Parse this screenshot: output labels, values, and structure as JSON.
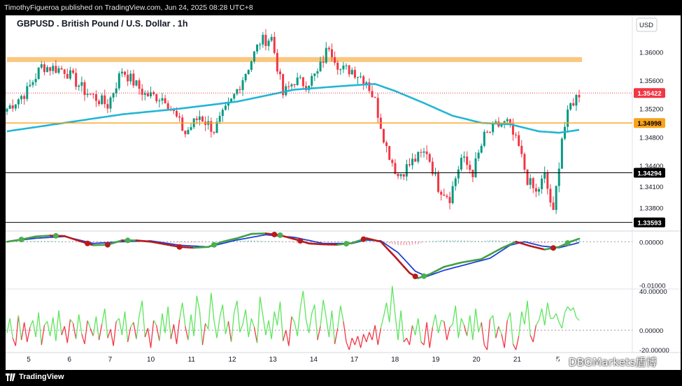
{
  "header": {
    "publisher": "TimothyFigueroa published on TradingView.com, Jun 24, 2025 08:28 UTC+8"
  },
  "footer": {
    "logo_text": "TradingView",
    "watermark": "DBGMarkets盾博"
  },
  "colors": {
    "up": "#089981",
    "down": "#f23645",
    "ma": "#22b6d4",
    "zone": "#f9bd6b",
    "osc_up": "#43a047",
    "osc_down": "#b71c1c",
    "osc_signal": "#1e40d8",
    "rsi_up": "#5ce65c",
    "rsi_down": "#f23645"
  },
  "chart_data": [
    {
      "type": "candlestick",
      "title": "GBPUSD . British Pound / U.S. Dollar . 1h",
      "currency": "USD",
      "y_ticks": [
        1.36,
        1.356,
        1.352,
        1.348,
        1.344,
        1.341,
        1.338
      ],
      "ylim": [
        1.3349,
        1.3652
      ],
      "x_ticks": [
        "5",
        "6",
        "7",
        "10",
        "11",
        "12",
        "13",
        "14",
        "17",
        "18",
        "19",
        "20",
        "21",
        "5"
      ],
      "price_tags": [
        {
          "label": "1.35422",
          "value": 1.35422,
          "style": "last"
        },
        {
          "label": "1.34998",
          "value": 1.34998,
          "style": "level-orange"
        },
        {
          "label": "1.34294",
          "value": 1.34294,
          "style": "level-black"
        },
        {
          "label": "1.33593",
          "value": 1.33593,
          "style": "level-black"
        }
      ],
      "resistance_zone": [
        1.3586,
        1.3593
      ],
      "anchor_points": [
        [
          0,
          1.352
        ],
        [
          7,
          1.3545
        ],
        [
          12,
          1.358
        ],
        [
          20,
          1.3575
        ],
        [
          27,
          1.3545
        ],
        [
          35,
          1.3525
        ],
        [
          40,
          1.3575
        ],
        [
          48,
          1.354
        ],
        [
          55,
          1.3535
        ],
        [
          62,
          1.3485
        ],
        [
          67,
          1.351
        ],
        [
          72,
          1.349
        ],
        [
          78,
          1.353
        ],
        [
          84,
          1.358
        ],
        [
          88,
          1.3615
        ],
        [
          92,
          1.362
        ],
        [
          96,
          1.354
        ],
        [
          100,
          1.356
        ],
        [
          104,
          1.3555
        ],
        [
          108,
          1.357
        ],
        [
          112,
          1.361
        ],
        [
          116,
          1.3575
        ],
        [
          120,
          1.3575
        ],
        [
          125,
          1.356
        ],
        [
          128,
          1.353
        ],
        [
          132,
          1.3465
        ],
        [
          136,
          1.3425
        ],
        [
          141,
          1.3445
        ],
        [
          146,
          1.346
        ],
        [
          150,
          1.341
        ],
        [
          154,
          1.3395
        ],
        [
          158,
          1.345
        ],
        [
          162,
          1.343
        ],
        [
          166,
          1.348
        ],
        [
          170,
          1.3495
        ],
        [
          174,
          1.35
        ],
        [
          178,
          1.3465
        ],
        [
          181,
          1.342
        ],
        [
          184,
          1.34
        ],
        [
          187,
          1.3425
        ],
        [
          190,
          1.337
        ],
        [
          193,
          1.348
        ],
        [
          196,
          1.3525
        ],
        [
          199,
          1.3542
        ]
      ],
      "ma_points": [
        [
          0,
          1.3488
        ],
        [
          20,
          1.35
        ],
        [
          40,
          1.3512
        ],
        [
          60,
          1.352
        ],
        [
          80,
          1.353
        ],
        [
          100,
          1.3547
        ],
        [
          120,
          1.3553
        ],
        [
          128,
          1.3555
        ],
        [
          135,
          1.3545
        ],
        [
          145,
          1.3528
        ],
        [
          155,
          1.351
        ],
        [
          165,
          1.35
        ],
        [
          175,
          1.3498
        ],
        [
          185,
          1.3488
        ],
        [
          192,
          1.3486
        ],
        [
          199,
          1.349
        ]
      ]
    },
    {
      "type": "line",
      "title": "",
      "y_ticks": [
        0.0,
        -0.01
      ],
      "y_tick_labels": [
        "0.00000",
        "-0.01000"
      ],
      "ylim": [
        -0.0109,
        0.0023
      ],
      "main_points": [
        [
          0,
          0.0
        ],
        [
          5,
          0.0005
        ],
        [
          10,
          0.0012
        ],
        [
          15,
          0.0014
        ],
        [
          20,
          0.0013
        ],
        [
          25,
          0.0002
        ],
        [
          30,
          -0.0008
        ],
        [
          35,
          -0.0007
        ],
        [
          40,
          0.0003
        ],
        [
          45,
          0.0003
        ],
        [
          50,
          0.0
        ],
        [
          55,
          -0.0006
        ],
        [
          60,
          -0.0012
        ],
        [
          65,
          -0.0014
        ],
        [
          70,
          -0.0012
        ],
        [
          75,
          0.0
        ],
        [
          80,
          0.0008
        ],
        [
          85,
          0.0018
        ],
        [
          90,
          0.0019
        ],
        [
          95,
          0.0015
        ],
        [
          100,
          0.0006
        ],
        [
          105,
          -0.0004
        ],
        [
          110,
          -0.0006
        ],
        [
          115,
          -0.0007
        ],
        [
          120,
          -0.0003
        ],
        [
          125,
          0.0008
        ],
        [
          130,
          0.0
        ],
        [
          135,
          -0.0035
        ],
        [
          140,
          -0.0072
        ],
        [
          143,
          -0.0084
        ],
        [
          147,
          -0.0075
        ],
        [
          152,
          -0.0058
        ],
        [
          158,
          -0.0048
        ],
        [
          165,
          -0.004
        ],
        [
          172,
          -0.0015
        ],
        [
          177,
          0.0
        ],
        [
          182,
          -0.001
        ],
        [
          187,
          -0.0018
        ],
        [
          192,
          -0.0012
        ],
        [
          196,
          0.0
        ],
        [
          199,
          0.0007
        ]
      ],
      "signal_points": [
        [
          0,
          0.0
        ],
        [
          10,
          0.0008
        ],
        [
          20,
          0.0012
        ],
        [
          30,
          -0.0004
        ],
        [
          40,
          0.0
        ],
        [
          50,
          0.0002
        ],
        [
          60,
          -0.0008
        ],
        [
          70,
          -0.0012
        ],
        [
          80,
          0.0004
        ],
        [
          90,
          0.0016
        ],
        [
          100,
          0.001
        ],
        [
          110,
          -0.0004
        ],
        [
          120,
          -0.0004
        ],
        [
          125,
          0.0004
        ],
        [
          130,
          0.0002
        ],
        [
          136,
          -0.0025
        ],
        [
          142,
          -0.0068
        ],
        [
          146,
          -0.008
        ],
        [
          152,
          -0.0066
        ],
        [
          160,
          -0.0052
        ],
        [
          168,
          -0.0038
        ],
        [
          175,
          -0.0008
        ],
        [
          180,
          0.0
        ],
        [
          186,
          -0.001
        ],
        [
          192,
          -0.0014
        ],
        [
          199,
          -0.0002
        ]
      ],
      "cross_markers": [
        {
          "x": 5,
          "dir": "up"
        },
        {
          "x": 17,
          "dir": "up"
        },
        {
          "x": 28,
          "dir": "down"
        },
        {
          "x": 35,
          "dir": "down"
        },
        {
          "x": 42,
          "dir": "up"
        },
        {
          "x": 60,
          "dir": "down"
        },
        {
          "x": 72,
          "dir": "up"
        },
        {
          "x": 93,
          "dir": "down"
        },
        {
          "x": 95,
          "dir": "up"
        },
        {
          "x": 102,
          "dir": "down"
        },
        {
          "x": 118,
          "dir": "up"
        },
        {
          "x": 124,
          "dir": "down"
        },
        {
          "x": 142,
          "dir": "down"
        },
        {
          "x": 145,
          "dir": "up"
        },
        {
          "x": 190,
          "dir": "down"
        },
        {
          "x": 195,
          "dir": "up"
        }
      ]
    },
    {
      "type": "line",
      "title": "",
      "y_ticks": [
        40,
        0,
        -20
      ],
      "y_tick_labels": [
        "40.00000",
        "0.00000",
        "-20.00000"
      ],
      "ylim": [
        -22,
        42
      ],
      "values": [
        -3,
        12,
        -8,
        -16,
        15,
        -10,
        8,
        -12,
        3,
        10,
        -7,
        18,
        -15,
        5,
        9,
        -6,
        13,
        -11,
        20,
        -5,
        4,
        -13,
        11,
        7,
        -9,
        16,
        -4,
        -14,
        10,
        2,
        -6,
        14,
        -10,
        6,
        22,
        -8,
        1,
        -16,
        9,
        12,
        -5,
        19,
        -12,
        3,
        8,
        -9,
        15,
        30,
        -7,
        2,
        -18,
        10,
        5,
        -11,
        17,
        -3,
        24,
        -9,
        6,
        -14,
        11,
        28,
        4,
        -10,
        16,
        -6,
        35,
        20,
        -15,
        7,
        1,
        38,
        10,
        -8,
        13,
        26,
        -4,
        9,
        -12,
        18,
        30,
        -2,
        6,
        21,
        -7,
        12,
        3,
        -13,
        34,
        15,
        -5,
        10,
        -9,
        19,
        5,
        29,
        -11,
        0,
        -16,
        14,
        8,
        -6,
        22,
        40,
        11,
        -3,
        17,
        26,
        -10,
        4,
        31,
        13,
        -7,
        20,
        -14,
        2,
        25,
        9,
        -12,
        -20,
        -8,
        -15,
        -6,
        -18,
        -4,
        -12,
        -2,
        -10,
        5,
        -15,
        2,
        14,
        28,
        8,
        45,
        16,
        -10,
        20,
        -12,
        -8,
        -15,
        5,
        -5,
        12,
        -12,
        -15,
        8,
        -18,
        3,
        16,
        -3,
        10,
        9,
        -10,
        3,
        6,
        25,
        -8,
        12,
        5,
        -6,
        15,
        -10,
        22,
        -2,
        8,
        -15,
        -20,
        11,
        15,
        -8,
        4,
        -4,
        -18,
        10,
        18,
        -14,
        -20,
        -6,
        19,
        6,
        30,
        -5,
        -12,
        5,
        10,
        22,
        5,
        28,
        12,
        12,
        17,
        8,
        2,
        18,
        24,
        20,
        23,
        13,
        10
      ]
    }
  ]
}
